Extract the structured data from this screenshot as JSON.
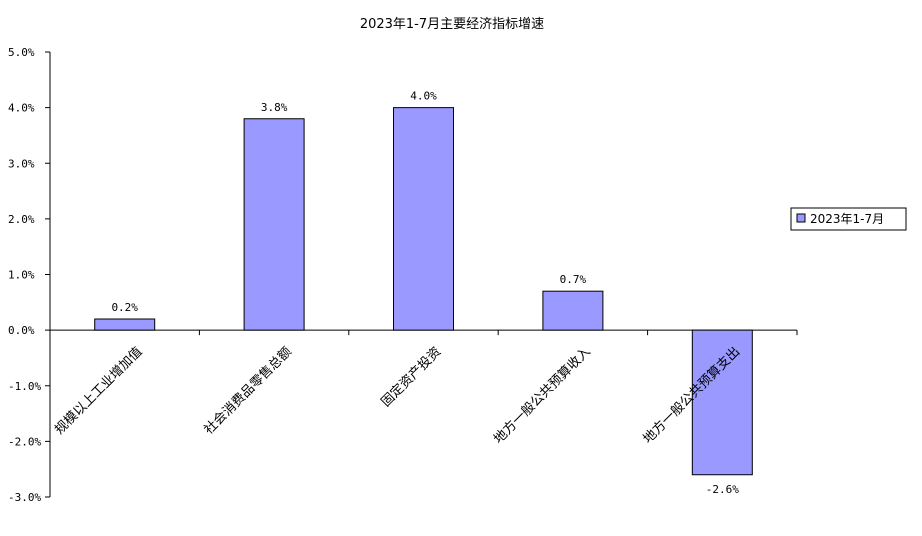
{
  "chart_data": {
    "type": "bar",
    "title": "2023年1-7月主要经济指标增速",
    "categories": [
      "规模以上工业增加值",
      "社会消费品零售总额",
      "固定资产投资",
      "地方一般公共预算收入",
      "地方一般公共预算支出"
    ],
    "series": [
      {
        "name": "2023年1-7月",
        "values": [
          0.2,
          3.8,
          4.0,
          0.7,
          -2.6
        ],
        "color": "#9999ff"
      }
    ],
    "data_labels": [
      "0.2%",
      "3.8%",
      "4.0%",
      "0.7%",
      "-2.6%"
    ],
    "ylim": [
      -3.0,
      5.0
    ],
    "yticks": [
      5.0,
      4.0,
      3.0,
      2.0,
      1.0,
      0.0,
      -1.0,
      -2.0,
      -3.0
    ],
    "ytick_labels": [
      "5.0%",
      "4.0%",
      "3.0%",
      "2.0%",
      "1.0%",
      "0.0%",
      "-1.0%",
      "-2.0%",
      "-3.0%"
    ],
    "grid": false,
    "legend_position": "right",
    "xlabel": "",
    "ylabel": ""
  }
}
